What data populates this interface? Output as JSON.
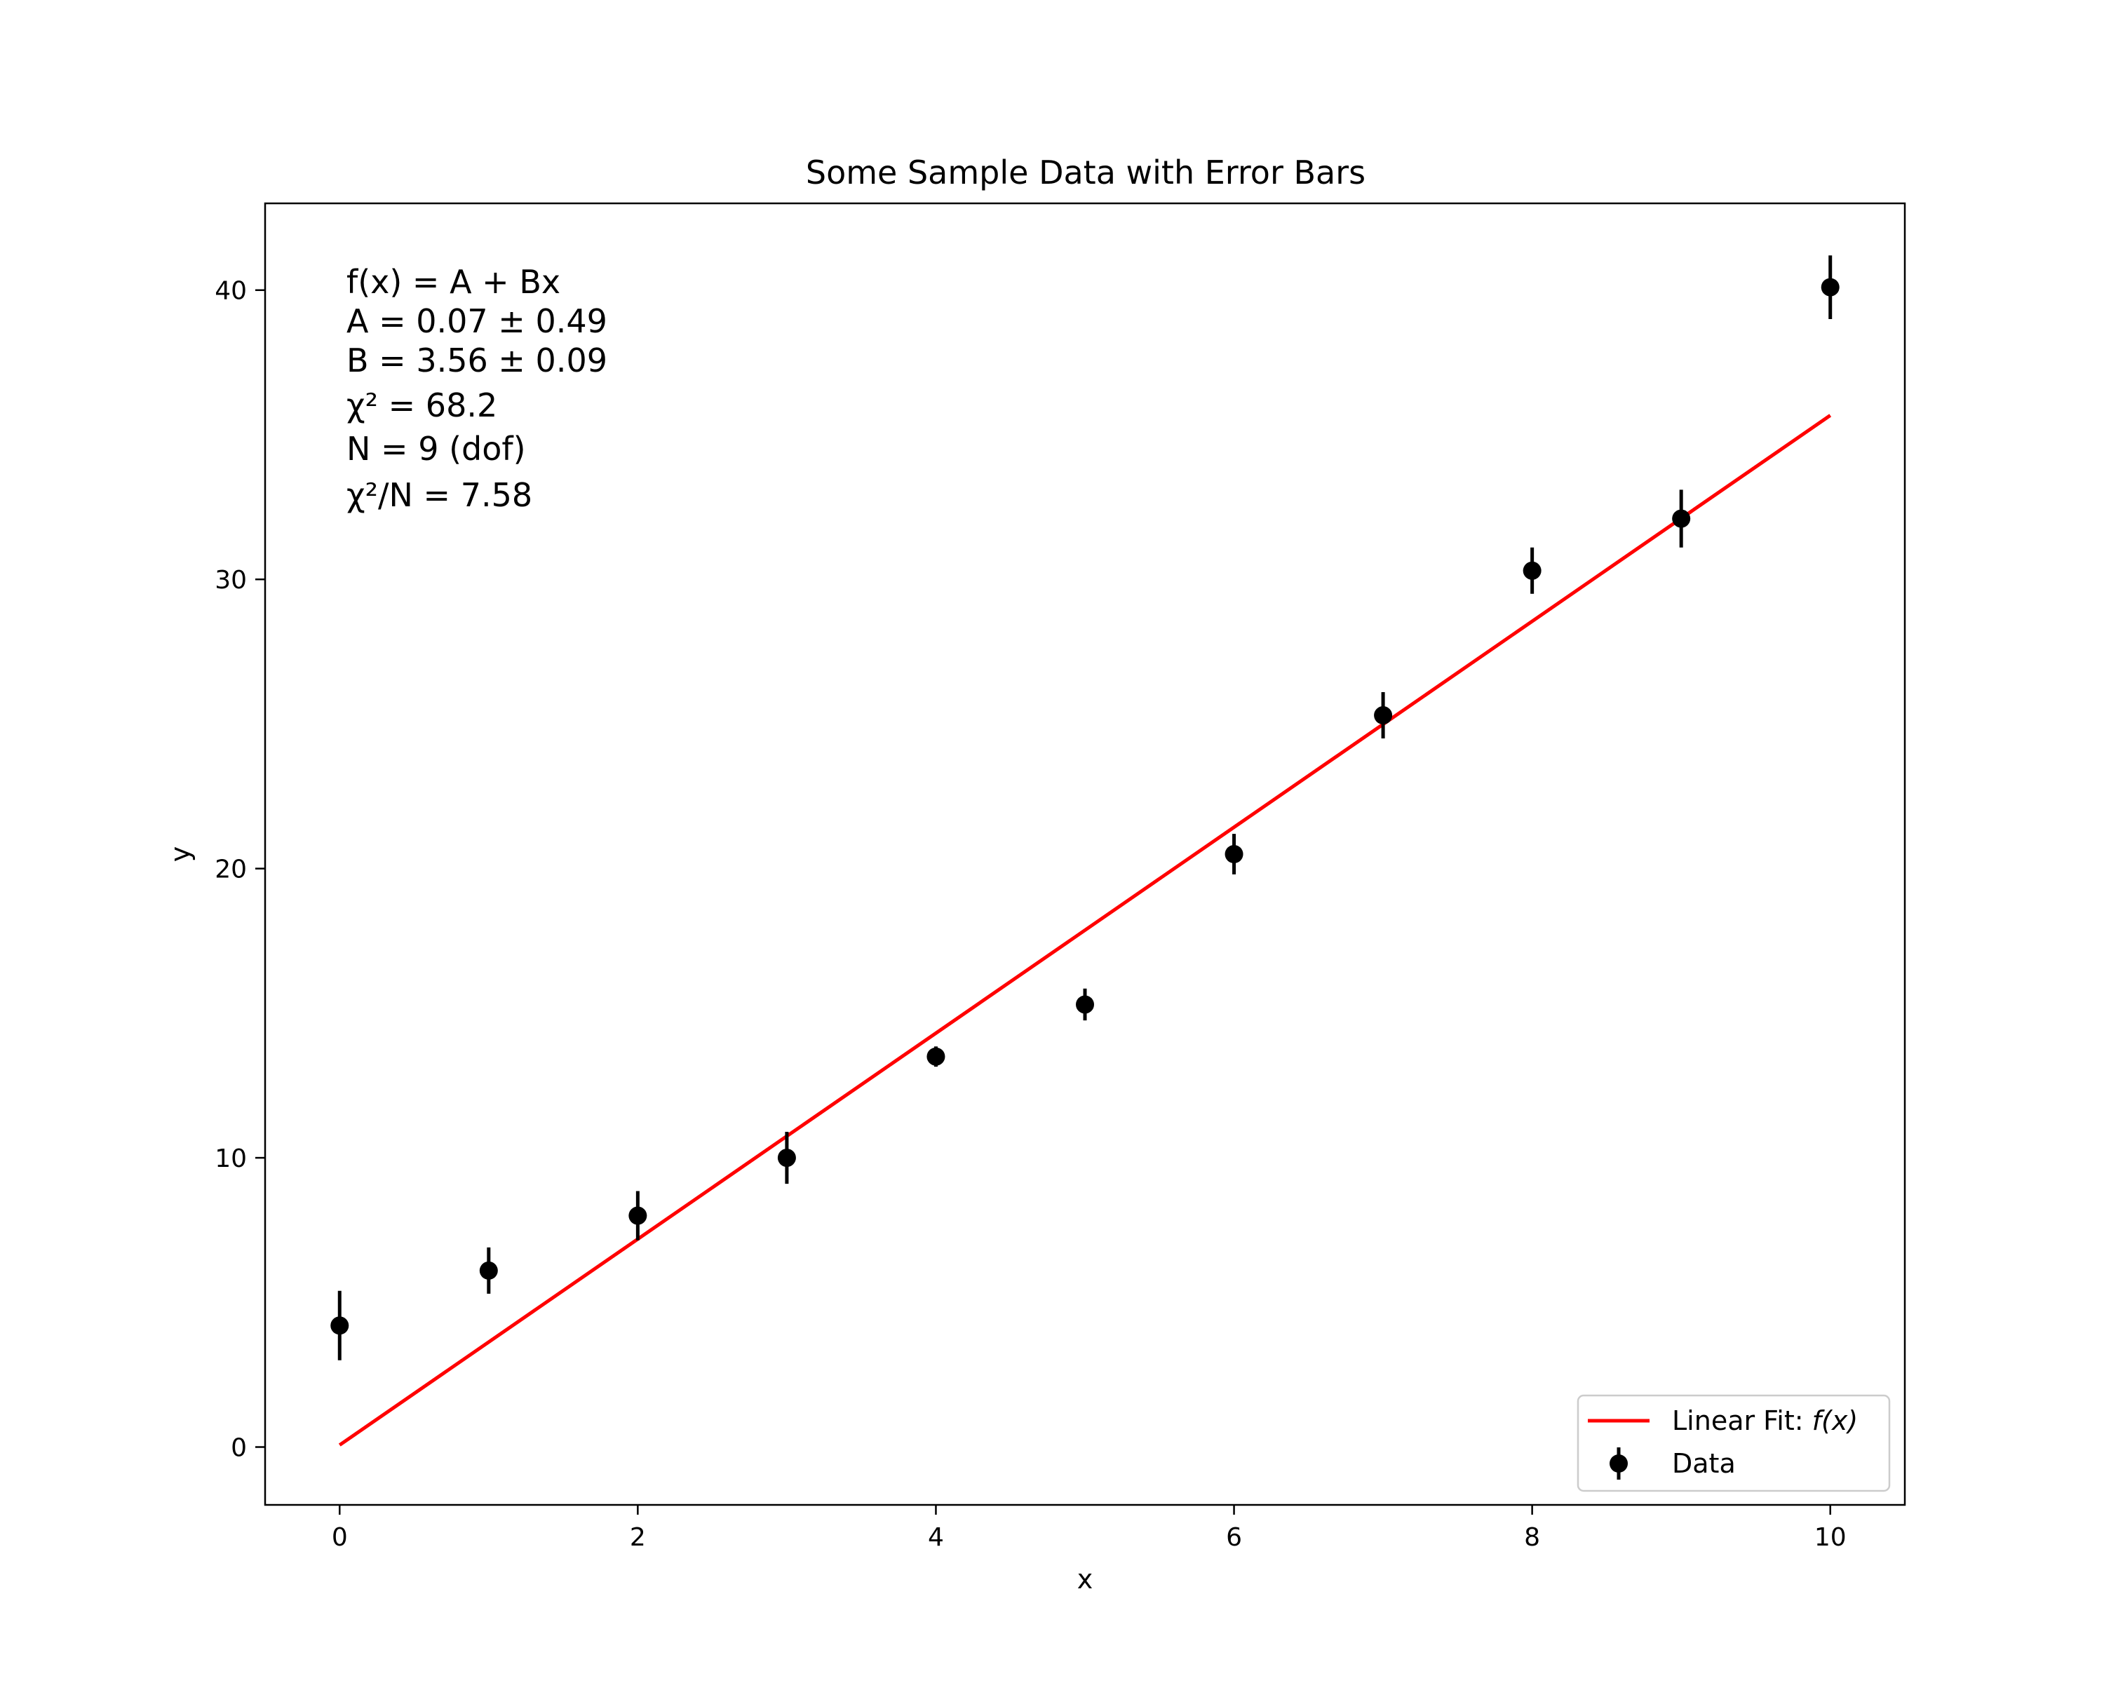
{
  "chart_data": {
    "type": "scatter",
    "title": "Some Sample Data with Error Bars",
    "xlabel": "x",
    "ylabel": "y",
    "xlim": [
      -0.5,
      10.5
    ],
    "ylim": [
      -2,
      43
    ],
    "xticks": [
      0,
      2,
      4,
      6,
      8,
      10
    ],
    "yticks": [
      0,
      10,
      20,
      30,
      40
    ],
    "xtick_labels": [
      "0",
      "2",
      "4",
      "6",
      "8",
      "10"
    ],
    "ytick_labels": [
      "0",
      "10",
      "20",
      "30",
      "40"
    ],
    "grid": false,
    "legend_position": "lower-right",
    "series": [
      {
        "name": "Data",
        "kind": "errorbar",
        "color": "#000000",
        "x": [
          0,
          1,
          2,
          3,
          4,
          5,
          6,
          7,
          8,
          9,
          10
        ],
        "y": [
          4.2,
          6.1,
          8.0,
          10.0,
          13.5,
          15.3,
          20.5,
          25.3,
          30.3,
          32.1,
          40.1
        ],
        "yerr": [
          1.2,
          0.8,
          0.85,
          0.9,
          0.35,
          0.55,
          0.7,
          0.8,
          0.8,
          1.0,
          1.1
        ]
      },
      {
        "name": "Linear Fit: f(x)",
        "kind": "line",
        "color": "#ff0000",
        "x": [
          0,
          10
        ],
        "y": [
          0.07,
          35.67
        ]
      }
    ],
    "legend": {
      "fit_prefix": "Linear Fit: ",
      "fit_math": "f(x)",
      "data_label": "Data"
    },
    "annotation": {
      "line1": "f(x) = A + Bx",
      "line2": "A = 0.07 ± 0.49",
      "line3": "B = 3.56 ± 0.09",
      "line4": "χ² = 68.2",
      "line5": "N = 9 (dof)",
      "line6": "χ²/N = 7.58"
    }
  }
}
